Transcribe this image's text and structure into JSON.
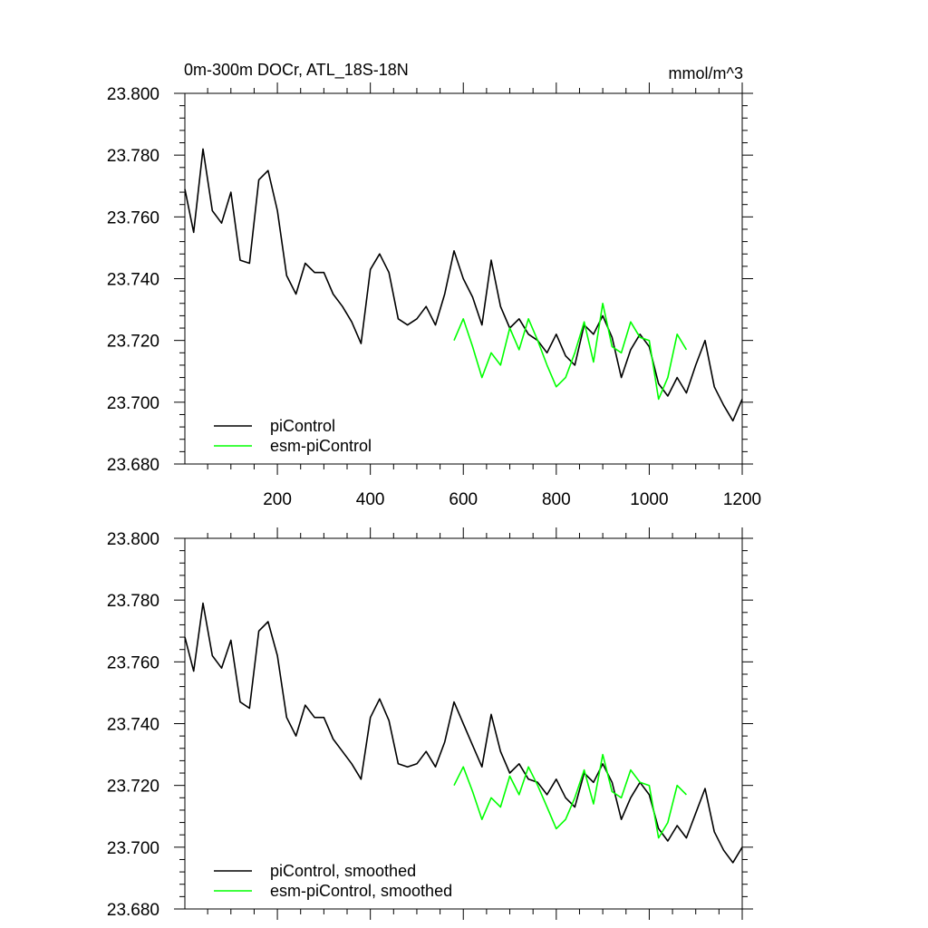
{
  "chart_data": [
    {
      "type": "line",
      "title": "0m-300m DOCr, ATL_18S-18N",
      "units": "mmol/m^3",
      "xlim": [
        1,
        1200
      ],
      "ylim": [
        23.68,
        23.8
      ],
      "y_ticks": [
        "23.680",
        "23.700",
        "23.720",
        "23.740",
        "23.760",
        "23.780",
        "23.800"
      ],
      "x_ticks": [
        "200",
        "400",
        "600",
        "800",
        "1000",
        "1200"
      ],
      "x_tick_values": [
        200,
        400,
        600,
        800,
        1000,
        1200
      ],
      "legend_position": "bottom-left",
      "series": [
        {
          "name": "piControl",
          "color": "#000000",
          "x": [
            1,
            20,
            40,
            60,
            80,
            100,
            120,
            140,
            160,
            180,
            200,
            220,
            240,
            260,
            280,
            300,
            320,
            340,
            360,
            380,
            400,
            420,
            440,
            460,
            480,
            500,
            520,
            540,
            560,
            580,
            600,
            620,
            640,
            660,
            680,
            700,
            720,
            740,
            760,
            780,
            800,
            820,
            840,
            860,
            880,
            900,
            920,
            940,
            960,
            980,
            1000,
            1020,
            1040,
            1060,
            1080,
            1100,
            1120,
            1140,
            1160,
            1180,
            1200
          ],
          "values": [
            23.769,
            23.755,
            23.782,
            23.762,
            23.758,
            23.768,
            23.746,
            23.745,
            23.772,
            23.775,
            23.762,
            23.741,
            23.735,
            23.745,
            23.742,
            23.742,
            23.735,
            23.731,
            23.726,
            23.719,
            23.743,
            23.748,
            23.742,
            23.727,
            23.725,
            23.727,
            23.731,
            23.725,
            23.735,
            23.749,
            23.74,
            23.734,
            23.725,
            23.746,
            23.731,
            23.724,
            23.727,
            23.722,
            23.72,
            23.716,
            23.722,
            23.715,
            23.712,
            23.725,
            23.722,
            23.728,
            23.721,
            23.708,
            23.717,
            23.722,
            23.718,
            23.706,
            23.702,
            23.708,
            23.703,
            23.712,
            23.72,
            23.705,
            23.699,
            23.694,
            23.701
          ]
        },
        {
          "name": "esm-piControl",
          "color": "#00ff00",
          "x": [
            580,
            600,
            620,
            640,
            660,
            680,
            700,
            720,
            740,
            760,
            780,
            800,
            820,
            840,
            860,
            880,
            900,
            920,
            940,
            960,
            980,
            1000,
            1020,
            1040,
            1060,
            1080
          ],
          "values": [
            23.72,
            23.727,
            23.718,
            23.708,
            23.716,
            23.712,
            23.724,
            23.717,
            23.727,
            23.72,
            23.712,
            23.705,
            23.708,
            23.716,
            23.726,
            23.713,
            23.732,
            23.718,
            23.716,
            23.726,
            23.721,
            23.72,
            23.701,
            23.708,
            23.722,
            23.717
          ]
        }
      ]
    },
    {
      "type": "line",
      "xlim": [
        1,
        1200
      ],
      "ylim": [
        23.68,
        23.8
      ],
      "y_ticks": [
        "23.680",
        "23.700",
        "23.720",
        "23.740",
        "23.760",
        "23.780",
        "23.800"
      ],
      "legend_position": "bottom-left",
      "series": [
        {
          "name": "piControl, smoothed",
          "color": "#000000",
          "x": [
            1,
            20,
            40,
            60,
            80,
            100,
            120,
            140,
            160,
            180,
            200,
            220,
            240,
            260,
            280,
            300,
            320,
            340,
            360,
            380,
            400,
            420,
            440,
            460,
            480,
            500,
            520,
            540,
            560,
            580,
            600,
            620,
            640,
            660,
            680,
            700,
            720,
            740,
            760,
            780,
            800,
            820,
            840,
            860,
            880,
            900,
            920,
            940,
            960,
            980,
            1000,
            1020,
            1040,
            1060,
            1080,
            1100,
            1120,
            1140,
            1160,
            1180,
            1200
          ],
          "values": [
            23.768,
            23.757,
            23.779,
            23.762,
            23.758,
            23.767,
            23.747,
            23.745,
            23.77,
            23.773,
            23.762,
            23.742,
            23.736,
            23.746,
            23.742,
            23.742,
            23.735,
            23.731,
            23.727,
            23.722,
            23.742,
            23.748,
            23.741,
            23.727,
            23.726,
            23.727,
            23.731,
            23.726,
            23.734,
            23.747,
            23.74,
            23.733,
            23.726,
            23.743,
            23.731,
            23.724,
            23.727,
            23.722,
            23.721,
            23.717,
            23.722,
            23.716,
            23.713,
            23.724,
            23.721,
            23.727,
            23.721,
            23.709,
            23.716,
            23.721,
            23.717,
            23.706,
            23.702,
            23.707,
            23.703,
            23.711,
            23.719,
            23.705,
            23.699,
            23.695,
            23.7
          ]
        },
        {
          "name": "esm-piControl, smoothed",
          "color": "#00ff00",
          "x": [
            580,
            600,
            620,
            640,
            660,
            680,
            700,
            720,
            740,
            760,
            780,
            800,
            820,
            840,
            860,
            880,
            900,
            920,
            940,
            960,
            980,
            1000,
            1020,
            1040,
            1060,
            1080
          ],
          "values": [
            23.72,
            23.726,
            23.718,
            23.709,
            23.716,
            23.713,
            23.723,
            23.717,
            23.726,
            23.72,
            23.713,
            23.706,
            23.709,
            23.716,
            23.725,
            23.714,
            23.73,
            23.718,
            23.716,
            23.725,
            23.721,
            23.72,
            23.703,
            23.708,
            23.72,
            23.717
          ]
        }
      ]
    }
  ]
}
